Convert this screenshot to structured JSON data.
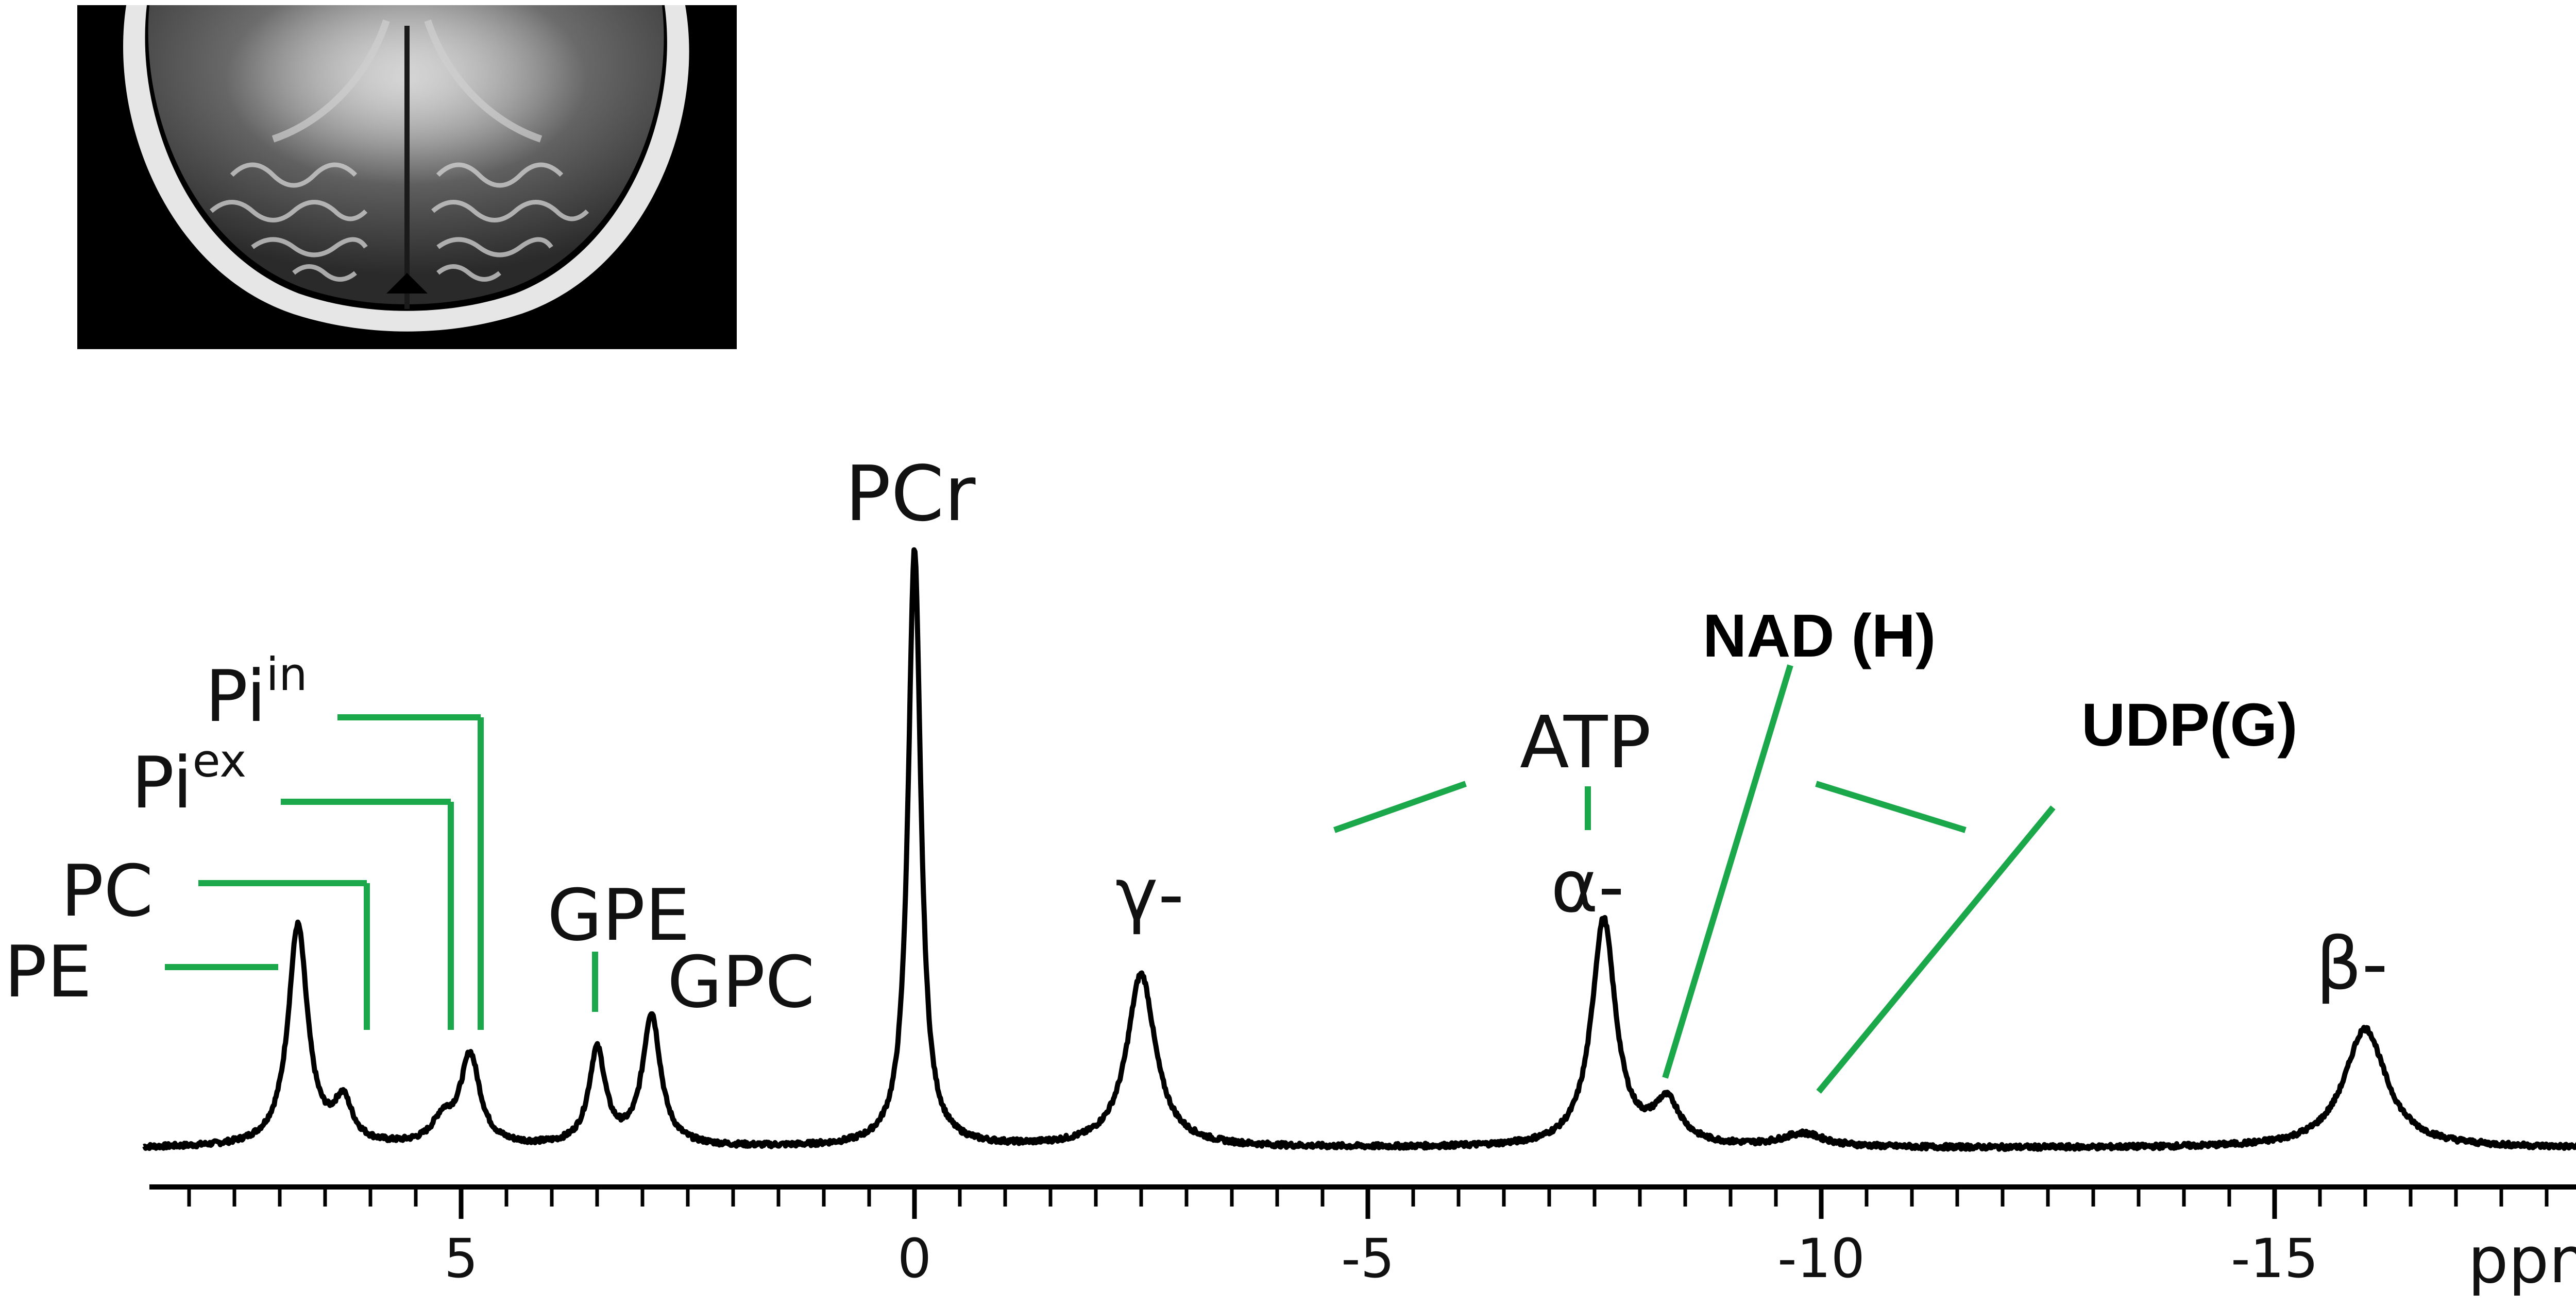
{
  "colors": {
    "trace": "#000000",
    "leader": "#1aa84a",
    "inset_bg": "#000000"
  },
  "inset": {
    "description_icon": "mri-brain-axial-image"
  },
  "chart_data": {
    "type": "line",
    "xlabel": "ppm",
    "xlim": [
      8.5,
      -18.6
    ],
    "x_reversed": true,
    "ticks": [
      {
        "value": 5,
        "label": "5"
      },
      {
        "value": 0,
        "label": "0"
      },
      {
        "value": -5,
        "label": "-5"
      },
      {
        "value": -10,
        "label": "-10"
      },
      {
        "value": -15,
        "label": "-15"
      }
    ],
    "minor_tick_step": 0.5,
    "peaks": [
      {
        "name": "PE",
        "center": 6.8,
        "height": 0.37,
        "width": 0.13
      },
      {
        "name": "PC",
        "center": 6.3,
        "height": 0.07,
        "width": 0.12
      },
      {
        "name": "Pi ex",
        "center": 5.2,
        "height": 0.04,
        "width": 0.14
      },
      {
        "name": "Pi in",
        "center": 4.9,
        "height": 0.15,
        "width": 0.13
      },
      {
        "name": "GPE",
        "center": 3.5,
        "height": 0.16,
        "width": 0.11
      },
      {
        "name": "GPC",
        "center": 2.9,
        "height": 0.22,
        "width": 0.12
      },
      {
        "name": "PCr",
        "center": 0.0,
        "height": 1.0,
        "width": 0.085
      },
      {
        "name": "γ-ATP",
        "center": -2.5,
        "height": 0.29,
        "width": 0.19
      },
      {
        "name": "α-ATP",
        "center": -7.6,
        "height": 0.38,
        "width": 0.16
      },
      {
        "name": "NAD (H)",
        "center": -8.3,
        "height": 0.07,
        "width": 0.18
      },
      {
        "name": "UDP(G)",
        "center": -9.8,
        "height": 0.022,
        "width": 0.28
      },
      {
        "name": "β-ATP",
        "center": -16.0,
        "height": 0.2,
        "width": 0.28
      }
    ],
    "annotations": {
      "PCr": "PCr",
      "PE": "PE",
      "PC": "PC",
      "Pi_ex_base": "Pi",
      "Pi_ex_sup": "ex",
      "Pi_in_base": "Pi",
      "Pi_in_sup": "in",
      "GPE": "GPE",
      "GPC": "GPC",
      "gamma": "γ-",
      "alpha": "α-",
      "beta": "β-",
      "ATP": "ATP",
      "NAD": "NAD (H)",
      "UDP": "UDP(G)"
    }
  }
}
